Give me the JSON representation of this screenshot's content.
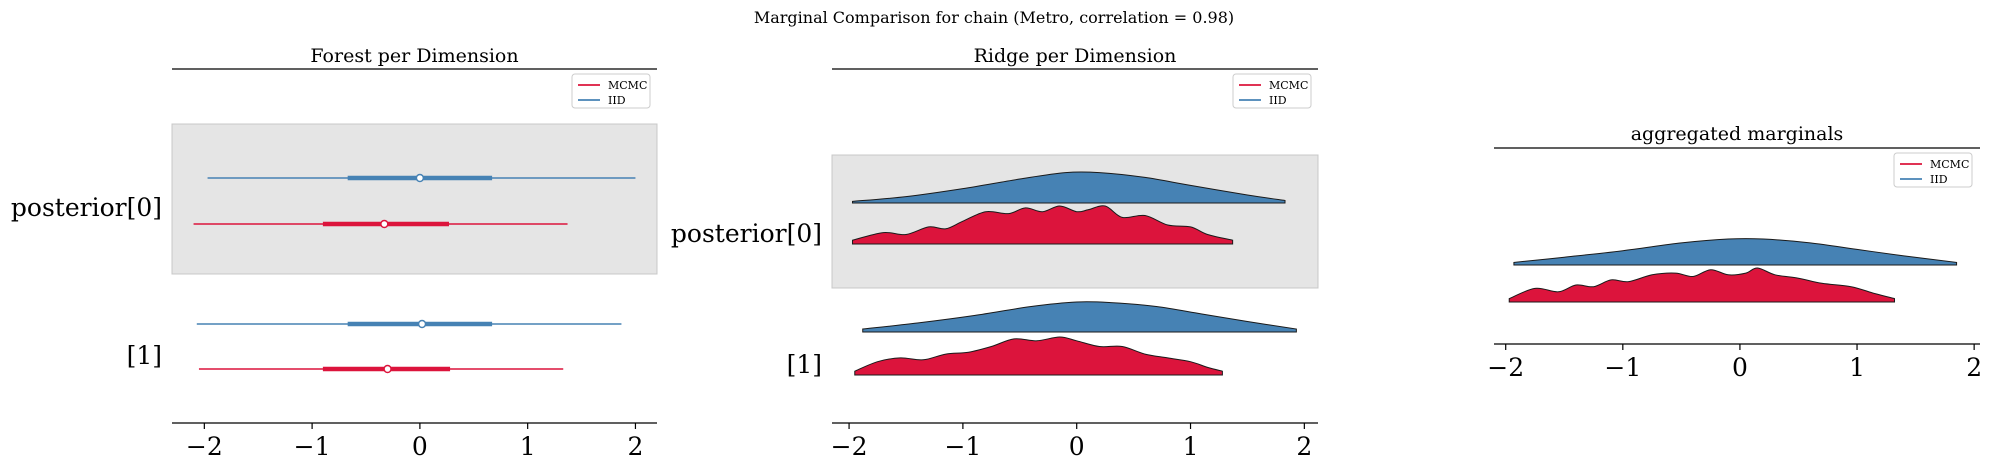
{
  "figure": {
    "suptitle": "Marginal Comparison for chain (Metro, correlation = 0.98)"
  },
  "colors": {
    "mcmc": "#dc143c",
    "iid": "#4682b4",
    "band": "#e5e5e5"
  },
  "legend": {
    "items": [
      "MCMC",
      "IID"
    ]
  },
  "chart_data": [
    {
      "type": "forest",
      "title": "Forest per Dimension",
      "x_ticks": [
        "−2",
        "−1",
        "0",
        "1",
        "2"
      ],
      "x_tick_values": [
        -2,
        -1,
        0,
        1,
        2
      ],
      "xlim": [
        -2.3,
        2.2
      ],
      "ylabels": [
        "posterior[0]",
        "[1]"
      ],
      "legend": "top-right",
      "rows": [
        {
          "label": "posterior[0]",
          "iid": {
            "low": -1.97,
            "q25": -0.67,
            "median": 0.0,
            "q75": 0.67,
            "high": 2.0
          },
          "mcmc": {
            "low": -2.1,
            "q25": -0.9,
            "median": -0.33,
            "q75": 0.27,
            "high": 1.37
          }
        },
        {
          "label": "[1]",
          "iid": {
            "low": -2.07,
            "q25": -0.67,
            "median": 0.02,
            "q75": 0.67,
            "high": 1.87
          },
          "mcmc": {
            "low": -2.05,
            "q25": -0.9,
            "median": -0.3,
            "q75": 0.28,
            "high": 1.33
          }
        }
      ]
    },
    {
      "type": "ridge",
      "title": "Ridge per Dimension",
      "x_ticks": [
        "−2",
        "−1",
        "0",
        "1",
        "2"
      ],
      "x_tick_values": [
        -2,
        -1,
        0,
        1,
        2
      ],
      "xlim": [
        -2.15,
        2.12
      ],
      "ylabels": [
        "posterior[0]",
        "[1]"
      ],
      "legend": "top-right",
      "rows": [
        {
          "label": "posterior[0]",
          "iid": {
            "x": [
              -1.97,
              -1.5,
              -1.0,
              -0.5,
              -0.1,
              0.2,
              0.6,
              1.0,
              1.5,
              1.83
            ],
            "y": [
              0.05,
              0.2,
              0.45,
              0.75,
              0.95,
              0.95,
              0.8,
              0.55,
              0.25,
              0.08
            ]
          },
          "mcmc": {
            "x": [
              -1.97,
              -1.7,
              -1.5,
              -1.3,
              -1.15,
              -1.0,
              -0.8,
              -0.6,
              -0.45,
              -0.3,
              -0.15,
              0.0,
              0.1,
              0.25,
              0.4,
              0.6,
              0.8,
              1.0,
              1.15,
              1.37
            ],
            "y": [
              0.1,
              0.3,
              0.25,
              0.45,
              0.4,
              0.6,
              0.85,
              0.8,
              0.95,
              0.85,
              1.0,
              0.85,
              0.9,
              1.0,
              0.7,
              0.75,
              0.5,
              0.45,
              0.25,
              0.1
            ]
          }
        },
        {
          "label": "[1]",
          "iid": {
            "x": [
              -1.88,
              -1.4,
              -0.9,
              -0.4,
              0.0,
              0.3,
              0.7,
              1.1,
              1.5,
              1.93
            ],
            "y": [
              0.1,
              0.3,
              0.55,
              0.85,
              1.0,
              0.98,
              0.85,
              0.6,
              0.35,
              0.1
            ]
          },
          "mcmc": {
            "x": [
              -1.95,
              -1.75,
              -1.55,
              -1.35,
              -1.15,
              -0.95,
              -0.75,
              -0.55,
              -0.35,
              -0.15,
              0.0,
              0.2,
              0.4,
              0.6,
              0.8,
              1.0,
              1.15,
              1.28
            ],
            "y": [
              0.1,
              0.35,
              0.45,
              0.4,
              0.55,
              0.6,
              0.75,
              0.95,
              0.9,
              1.0,
              0.9,
              0.75,
              0.75,
              0.55,
              0.45,
              0.35,
              0.2,
              0.1
            ]
          }
        }
      ]
    },
    {
      "type": "ridge",
      "title": "aggregated marginals",
      "x_ticks": [
        "−2",
        "−1",
        "0",
        "1",
        "2"
      ],
      "x_tick_values": [
        -2,
        -1,
        0,
        1,
        2
      ],
      "xlim": [
        -2.1,
        2.05
      ],
      "legend": "top-right",
      "rows": [
        {
          "label": "",
          "iid": {
            "x": [
              -1.93,
              -1.5,
              -1.0,
              -0.5,
              -0.1,
              0.2,
              0.6,
              1.0,
              1.4,
              1.85
            ],
            "y": [
              0.1,
              0.3,
              0.55,
              0.85,
              1.0,
              1.0,
              0.85,
              0.6,
              0.35,
              0.1
            ]
          },
          "mcmc": {
            "x": [
              -1.97,
              -1.75,
              -1.55,
              -1.4,
              -1.25,
              -1.1,
              -0.95,
              -0.75,
              -0.55,
              -0.4,
              -0.25,
              -0.1,
              0.05,
              0.15,
              0.3,
              0.5,
              0.7,
              0.95,
              1.15,
              1.32
            ],
            "y": [
              0.1,
              0.4,
              0.3,
              0.5,
              0.45,
              0.65,
              0.6,
              0.8,
              0.85,
              0.75,
              0.95,
              0.8,
              0.85,
              1.0,
              0.8,
              0.7,
              0.55,
              0.45,
              0.25,
              0.1
            ]
          }
        }
      ]
    }
  ]
}
